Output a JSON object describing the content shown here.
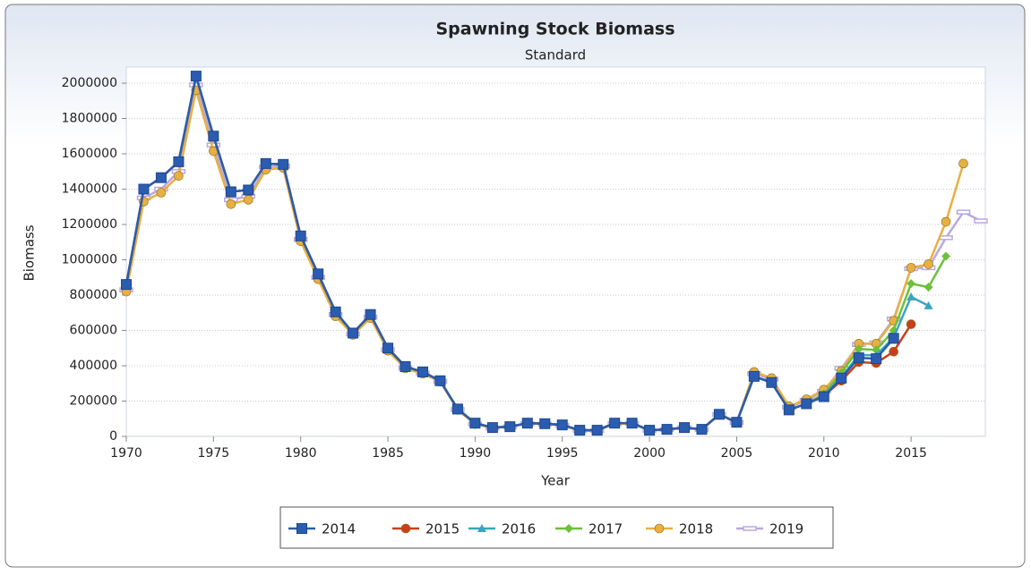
{
  "chart_data": {
    "type": "line",
    "title": "Spawning Stock Biomass",
    "subtitle": "Standard",
    "x_label": "Year",
    "y_label": "Biomass",
    "x": [
      1970,
      1971,
      1972,
      1973,
      1974,
      1975,
      1976,
      1977,
      1978,
      1979,
      1980,
      1981,
      1982,
      1983,
      1984,
      1985,
      1986,
      1987,
      1988,
      1989,
      1990,
      1991,
      1992,
      1993,
      1994,
      1995,
      1996,
      1997,
      1998,
      1999,
      2000,
      2001,
      2002,
      2003,
      2004,
      2005,
      2006,
      2007,
      2008,
      2009,
      2010,
      2011,
      2012,
      2013,
      2014,
      2015,
      2016,
      2017,
      2018,
      2019
    ],
    "xlim": [
      1970,
      2019
    ],
    "xticks": [
      1970,
      1975,
      1980,
      1985,
      1990,
      1995,
      2000,
      2005,
      2010,
      2015
    ],
    "ylim": [
      0,
      2000000
    ],
    "yticks": [
      0,
      200000,
      400000,
      600000,
      800000,
      1000000,
      1200000,
      1400000,
      1600000,
      1800000,
      2000000
    ],
    "grid": true,
    "series": [
      {
        "name": "2014",
        "color": "#2a5db0",
        "marker": "square",
        "values": [
          860000,
          1400000,
          1465000,
          1555000,
          2040000,
          1700000,
          1385000,
          1395000,
          1545000,
          1540000,
          1135000,
          920000,
          705000,
          585000,
          690000,
          500000,
          395000,
          365000,
          315000,
          155000,
          75000,
          50000,
          55000,
          75000,
          72000,
          65000,
          35000,
          35000,
          75000,
          75000,
          35000,
          40000,
          50000,
          40000,
          125000,
          80000,
          340000,
          305000,
          150000,
          185000,
          225000,
          330000,
          445000,
          440000,
          555000,
          null,
          null,
          null,
          null,
          null
        ]
      },
      {
        "name": "2015",
        "color": "#c8401a",
        "marker": "circle",
        "values": [
          860000,
          1400000,
          1465000,
          1555000,
          2040000,
          1700000,
          1385000,
          1395000,
          1545000,
          1540000,
          1135000,
          920000,
          705000,
          585000,
          690000,
          500000,
          395000,
          365000,
          315000,
          155000,
          75000,
          50000,
          55000,
          75000,
          72000,
          65000,
          35000,
          35000,
          75000,
          75000,
          35000,
          40000,
          50000,
          40000,
          125000,
          80000,
          340000,
          305000,
          150000,
          185000,
          230000,
          315000,
          420000,
          415000,
          480000,
          635000,
          null,
          null,
          null,
          null
        ]
      },
      {
        "name": "2016",
        "color": "#3aa5c0",
        "marker": "triangle",
        "values": [
          860000,
          1400000,
          1465000,
          1555000,
          2040000,
          1700000,
          1385000,
          1395000,
          1545000,
          1540000,
          1135000,
          920000,
          705000,
          585000,
          690000,
          500000,
          395000,
          365000,
          315000,
          155000,
          75000,
          50000,
          55000,
          75000,
          72000,
          65000,
          35000,
          35000,
          75000,
          75000,
          35000,
          40000,
          50000,
          40000,
          125000,
          80000,
          340000,
          305000,
          150000,
          185000,
          232000,
          335000,
          460000,
          460000,
          560000,
          790000,
          740000,
          null,
          null,
          null
        ]
      },
      {
        "name": "2017",
        "color": "#6cc03a",
        "marker": "diamond",
        "values": [
          860000,
          1400000,
          1465000,
          1555000,
          2040000,
          1700000,
          1385000,
          1395000,
          1545000,
          1540000,
          1135000,
          920000,
          705000,
          585000,
          690000,
          500000,
          395000,
          365000,
          315000,
          155000,
          75000,
          50000,
          55000,
          75000,
          72000,
          65000,
          35000,
          35000,
          75000,
          75000,
          35000,
          40000,
          50000,
          40000,
          125000,
          80000,
          340000,
          305000,
          150000,
          185000,
          240000,
          360000,
          495000,
          490000,
          600000,
          865000,
          845000,
          1020000,
          null,
          null
        ]
      },
      {
        "name": "2018",
        "color": "#e8b040",
        "marker": "circle",
        "values": [
          820000,
          1330000,
          1380000,
          1475000,
          1960000,
          1615000,
          1315000,
          1340000,
          1510000,
          1520000,
          1105000,
          890000,
          680000,
          575000,
          670000,
          485000,
          385000,
          355000,
          310000,
          150000,
          70000,
          48000,
          55000,
          72000,
          70000,
          62000,
          33000,
          33000,
          72000,
          73000,
          33000,
          38000,
          48000,
          38000,
          122000,
          78000,
          365000,
          330000,
          170000,
          210000,
          265000,
          370000,
          525000,
          525000,
          655000,
          955000,
          975000,
          1215000,
          1545000,
          null
        ]
      },
      {
        "name": "2019",
        "color": "#b8a8e0",
        "marker": "dash",
        "values": [
          830000,
          1350000,
          1400000,
          1500000,
          1990000,
          1650000,
          1340000,
          1360000,
          1525000,
          1530000,
          1115000,
          900000,
          690000,
          580000,
          675000,
          490000,
          388000,
          358000,
          312000,
          152000,
          70000,
          48000,
          55000,
          72000,
          70000,
          62000,
          33000,
          33000,
          72000,
          73000,
          34000,
          39000,
          49000,
          39000,
          124000,
          79000,
          355000,
          325000,
          165000,
          205000,
          255000,
          385000,
          520000,
          530000,
          665000,
          950000,
          955000,
          1125000,
          1270000,
          1220000
        ]
      }
    ]
  }
}
